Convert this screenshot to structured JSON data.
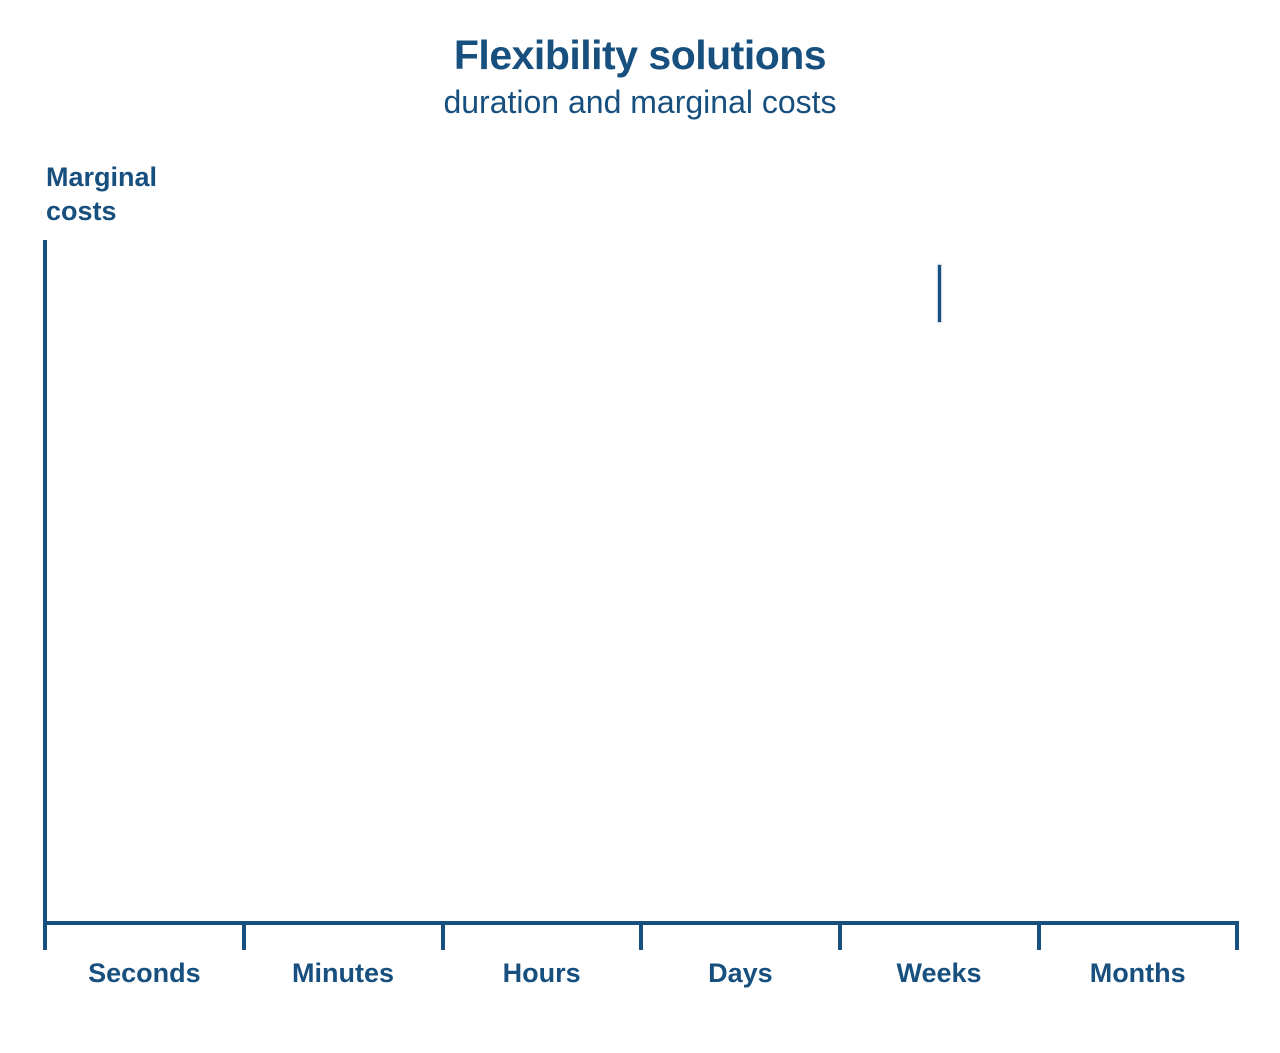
{
  "chart": {
    "title": "Flexibility solutions",
    "subtitle": "duration and marginal costs",
    "y_axis_label_line1": "Marginal",
    "y_axis_label_line2": "costs",
    "x_categories": [
      "Seconds",
      "Minutes",
      "Hours",
      "Days",
      "Weeks",
      "Months"
    ],
    "accent_color": "#17507f",
    "background_color": "#ffffff"
  },
  "chart_data": {
    "type": "line",
    "title": "Flexibility solutions",
    "subtitle": "duration and marginal costs",
    "xlabel": "",
    "ylabel": "Marginal costs",
    "categories": [
      "Seconds",
      "Minutes",
      "Hours",
      "Days",
      "Weeks",
      "Months"
    ],
    "series": [],
    "grid": false,
    "legend": false,
    "axis_ranges": {
      "x": "categorical, 6 equal intervals with 7 tick marks, labels centered between ticks",
      "y": "unlabeled, no ticks or scale shown"
    },
    "annotations": [
      {
        "type": "vertical-segment",
        "x_category": "Weeks",
        "x_fraction_of_axis": 0.75,
        "y_fraction_top": 0.037,
        "y_fraction_bottom": 0.12,
        "note": "short vertical stroke above the Weeks interval; plot area otherwise empty"
      }
    ]
  }
}
